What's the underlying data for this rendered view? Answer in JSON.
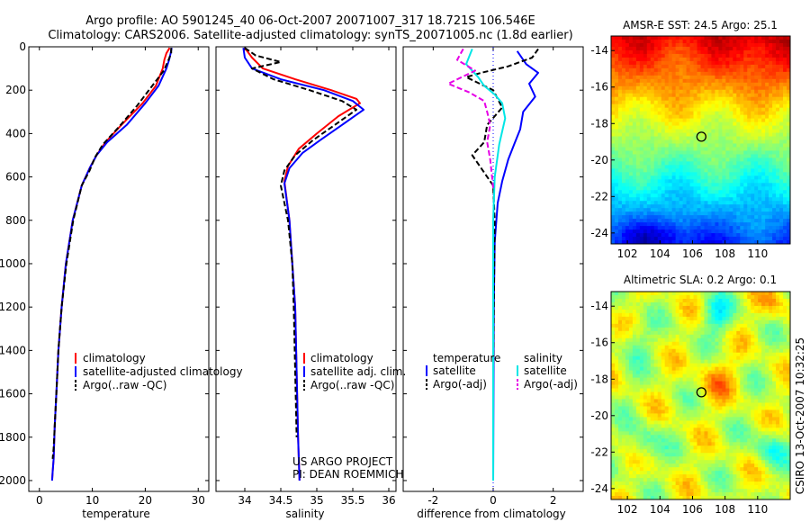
{
  "header": {
    "line1": "Argo profile: AO 5901245_40 06-Oct-2007 20071007_317 18.721S 106.546E",
    "line2": "Climatology: CARS2006. Satellite-adjusted climatology: synTS_20071005.nc (1.8d earlier)"
  },
  "credit": "CSIRO 13-Oct-2007 10:32:25",
  "colors": {
    "climatology": "#ff0000",
    "satellite": "#0000ff",
    "argo": "#000000",
    "satellite_sal": "#00e6e6",
    "argo_sal_adj": "#e600e6",
    "ref_line": "#0000ff"
  },
  "chart_data": [
    {
      "id": "temperature",
      "type": "line",
      "xlabel": "temperature",
      "ylabel": "",
      "xlim": [
        -2,
        32
      ],
      "ylim": [
        0,
        2050
      ],
      "y_reversed": true,
      "xticks": [
        0,
        10,
        20,
        30
      ],
      "yticks": [
        0,
        200,
        400,
        600,
        800,
        1000,
        1200,
        1400,
        1600,
        1800,
        2000
      ],
      "legend": [
        "climatology",
        "satellite-adjusted climatology",
        "Argo(..raw -QC)"
      ],
      "series": [
        {
          "name": "climatology",
          "color": "red",
          "style": "solid",
          "x": [
            24.6,
            24.0,
            23.6,
            23.3,
            22.0,
            19.5,
            15.5,
            12.5,
            10.8,
            9.5,
            8.0,
            6.3,
            5.0,
            4.2,
            3.6,
            3.2,
            2.9,
            2.7,
            2.5,
            2.4
          ],
          "y": [
            5,
            30,
            60,
            100,
            180,
            260,
            360,
            440,
            500,
            560,
            640,
            800,
            1000,
            1200,
            1400,
            1600,
            1750,
            1900,
            1960,
            2000
          ]
        },
        {
          "name": "satellite-adjusted climatology",
          "color": "blue",
          "style": "solid",
          "x": [
            25.0,
            24.8,
            24.5,
            24.0,
            22.5,
            20.0,
            16.5,
            12.8,
            10.8,
            9.5,
            8.0,
            6.3,
            5.0,
            4.2,
            3.6,
            3.2,
            2.9,
            2.7,
            2.5,
            2.4
          ],
          "y": [
            5,
            30,
            60,
            100,
            180,
            260,
            360,
            440,
            500,
            560,
            640,
            800,
            1000,
            1200,
            1400,
            1600,
            1750,
            1900,
            1960,
            2000
          ]
        },
        {
          "name": "Argo(..raw -QC)",
          "color": "black",
          "style": "dashed",
          "x": [
            24.9,
            24.9,
            24.4,
            23.5,
            21.0,
            18.5,
            15.0,
            12.0,
            10.5,
            9.5,
            8.0,
            6.4,
            5.1,
            4.2,
            3.6,
            3.2,
            2.9,
            2.7,
            2.5
          ],
          "y": [
            5,
            30,
            60,
            110,
            190,
            270,
            370,
            450,
            510,
            570,
            640,
            800,
            1000,
            1200,
            1400,
            1600,
            1750,
            1850,
            1900
          ]
        }
      ]
    },
    {
      "id": "salinity",
      "type": "line",
      "xlabel": "salinity",
      "ylabel": "",
      "xlim": [
        33.6,
        36.1
      ],
      "ylim": [
        0,
        2050
      ],
      "y_reversed": true,
      "xticks": [
        34,
        34.5,
        35,
        35.5,
        36
      ],
      "legend": [
        "climatology",
        "satellite adj. clim.",
        "Argo(..raw -QC)"
      ],
      "annotations": [
        "US ARGO PROJECT",
        "PI: DEAN ROEMMICH"
      ],
      "series": [
        {
          "name": "climatology",
          "color": "red",
          "style": "solid",
          "x": [
            34.0,
            34.1,
            34.25,
            34.7,
            35.2,
            35.55,
            35.6,
            35.3,
            35.0,
            34.75,
            34.6,
            34.55,
            34.62,
            34.66,
            34.7,
            34.72,
            34.74,
            34.76
          ],
          "y": [
            5,
            50,
            100,
            150,
            200,
            240,
            260,
            320,
            400,
            470,
            550,
            620,
            800,
            1000,
            1200,
            1500,
            1800,
            2000
          ]
        },
        {
          "name": "satellite adj. clim.",
          "color": "blue",
          "style": "solid",
          "x": [
            33.98,
            34.0,
            34.1,
            34.5,
            35.1,
            35.5,
            35.65,
            35.35,
            35.05,
            34.8,
            34.62,
            34.55,
            34.62,
            34.66,
            34.7,
            34.72,
            34.74,
            34.76
          ],
          "y": [
            5,
            50,
            100,
            150,
            200,
            250,
            290,
            360,
            430,
            490,
            560,
            630,
            800,
            1000,
            1200,
            1500,
            1800,
            2000
          ]
        },
        {
          "name": "Argo(..raw -QC)",
          "color": "black",
          "style": "dashed",
          "x": [
            34.0,
            34.15,
            34.5,
            34.1,
            34.4,
            34.9,
            35.35,
            35.55,
            35.25,
            34.95,
            34.7,
            34.55,
            34.5,
            34.6,
            34.66,
            34.68,
            34.7,
            34.72
          ],
          "y": [
            5,
            40,
            70,
            100,
            150,
            200,
            250,
            290,
            360,
            430,
            500,
            570,
            640,
            800,
            1000,
            1200,
            1500,
            1800
          ]
        }
      ]
    },
    {
      "id": "difference",
      "type": "line",
      "xlabel": "difference from climatology",
      "ylabel": "",
      "xlim": [
        -3,
        3
      ],
      "ylim": [
        0,
        2050
      ],
      "y_reversed": true,
      "xticks": [
        -2,
        0,
        2
      ],
      "legend": [
        {
          "group": "temperature",
          "items": [
            "satellite",
            "Argo(-adj)"
          ]
        },
        {
          "group": "salinity",
          "items": [
            "satellite",
            "Argo(-adj)"
          ]
        }
      ],
      "series": [
        {
          "name": "temperature satellite",
          "color": "blue",
          "style": "solid",
          "x": [
            0.8,
            1.1,
            1.5,
            1.2,
            1.4,
            1.0,
            0.9,
            0.7,
            0.5,
            0.3,
            0.15,
            0.05,
            0.02,
            0.0
          ],
          "y": [
            20,
            80,
            120,
            170,
            230,
            300,
            380,
            450,
            520,
            620,
            720,
            900,
            1200,
            2000
          ]
        },
        {
          "name": "temperature Argo(-adj)",
          "color": "black",
          "style": "dashed",
          "x": [
            1.5,
            1.3,
            0.5,
            -0.4,
            -0.9,
            0.0,
            0.3,
            -0.2,
            -0.3,
            -0.7,
            -0.4,
            0.0,
            0.05,
            0.0
          ],
          "y": [
            10,
            50,
            90,
            120,
            140,
            200,
            280,
            360,
            440,
            500,
            560,
            640,
            800,
            1500
          ]
        },
        {
          "name": "salinity satellite",
          "color": "cyan",
          "style": "solid",
          "x": [
            -0.7,
            -0.9,
            -0.5,
            -0.3,
            0.05,
            0.3,
            0.4,
            0.2,
            0.05,
            0.0,
            0.0,
            0.0
          ],
          "y": [
            10,
            80,
            140,
            180,
            220,
            260,
            330,
            450,
            600,
            800,
            1200,
            2000
          ]
        },
        {
          "name": "salinity Argo(-adj)",
          "color": "magenta",
          "style": "dashed",
          "x": [
            -1.0,
            -1.2,
            -0.6,
            -1.5,
            -0.8,
            -0.3,
            -0.2,
            -0.1,
            -0.2,
            -0.1,
            0.0
          ],
          "y": [
            10,
            60,
            110,
            170,
            210,
            250,
            300,
            360,
            440,
            520,
            650
          ]
        }
      ]
    },
    {
      "id": "sst_map",
      "type": "heatmap",
      "title": "AMSR-E SST: 24.5  Argo: 25.1",
      "xlim": [
        101,
        112
      ],
      "ylim": [
        -24.6,
        -13.2
      ],
      "xticks": [
        102,
        104,
        106,
        108,
        110
      ],
      "yticks": [
        -14,
        -16,
        -18,
        -20,
        -22,
        -24
      ],
      "marker": {
        "lon": 106.546,
        "lat": -18.721
      }
    },
    {
      "id": "sla_map",
      "type": "heatmap",
      "title": "Altimetric SLA: 0.2  Argo: 0.1",
      "xlim": [
        101,
        112
      ],
      "ylim": [
        -24.6,
        -13.2
      ],
      "xticks": [
        102,
        104,
        106,
        108,
        110
      ],
      "yticks": [
        -14,
        -16,
        -18,
        -20,
        -22,
        -24
      ],
      "marker": {
        "lon": 106.546,
        "lat": -18.721
      }
    }
  ]
}
